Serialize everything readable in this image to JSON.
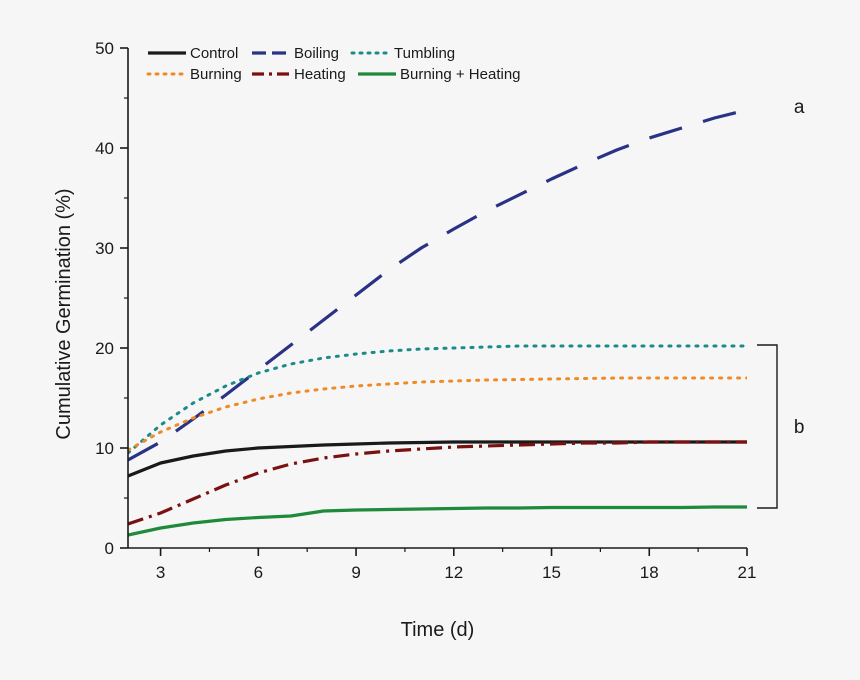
{
  "chart_data": {
    "type": "line",
    "title": "",
    "xlabel": "Time (d)",
    "ylabel": "Cumulative Germination (%)",
    "xlim": [
      2,
      21
    ],
    "ylim": [
      0,
      50
    ],
    "xticks": [
      3,
      6,
      9,
      12,
      15,
      18,
      21
    ],
    "yticks": [
      0,
      10,
      20,
      30,
      40,
      50
    ],
    "legend_position": "top-left",
    "grid": false,
    "series": [
      {
        "name": "Control",
        "color": "#1a1a1a",
        "dash": "solid",
        "x": [
          2,
          3,
          4,
          5,
          6,
          7,
          8,
          9,
          10,
          11,
          12,
          13,
          14,
          15,
          16,
          17,
          18,
          19,
          20,
          21
        ],
        "values": [
          7.2,
          8.5,
          9.2,
          9.7,
          10.0,
          10.15,
          10.3,
          10.4,
          10.5,
          10.55,
          10.6,
          10.6,
          10.6,
          10.6,
          10.6,
          10.6,
          10.6,
          10.6,
          10.6,
          10.6
        ]
      },
      {
        "name": "Boiling",
        "color": "#2a3286",
        "dash": "long-dash",
        "x": [
          2,
          3,
          4,
          5,
          6,
          7,
          8,
          9,
          10,
          11,
          12,
          13,
          14,
          15,
          16,
          17,
          18,
          19,
          20,
          21
        ],
        "values": [
          8.8,
          10.6,
          12.9,
          15.3,
          17.8,
          20.3,
          22.8,
          25.3,
          27.8,
          30.0,
          31.9,
          33.7,
          35.3,
          36.9,
          38.4,
          39.8,
          41.0,
          42.0,
          43.0,
          43.8
        ]
      },
      {
        "name": "Tumbling",
        "color": "#1a8a8a",
        "dash": "dot",
        "x": [
          2,
          3,
          4,
          5,
          6,
          7,
          8,
          9,
          10,
          11,
          12,
          13,
          14,
          15,
          16,
          17,
          18,
          19,
          20,
          21
        ],
        "values": [
          9.5,
          12.3,
          14.5,
          16.2,
          17.5,
          18.4,
          19.0,
          19.4,
          19.7,
          19.9,
          20.0,
          20.1,
          20.2,
          20.2,
          20.2,
          20.2,
          20.2,
          20.2,
          20.2,
          20.2
        ]
      },
      {
        "name": "Burning",
        "color": "#f08a24",
        "dash": "dot",
        "x": [
          2,
          3,
          4,
          5,
          6,
          7,
          8,
          9,
          10,
          11,
          12,
          13,
          14,
          15,
          16,
          17,
          18,
          19,
          20,
          21
        ],
        "values": [
          9.8,
          11.6,
          13.0,
          14.1,
          14.9,
          15.5,
          15.9,
          16.2,
          16.4,
          16.6,
          16.7,
          16.8,
          16.85,
          16.9,
          16.95,
          17.0,
          17.0,
          17.0,
          17.0,
          17.0
        ]
      },
      {
        "name": "Heating",
        "color": "#7a1010",
        "dash": "dash-dot",
        "x": [
          2,
          3,
          4,
          5,
          6,
          7,
          8,
          9,
          10,
          11,
          12,
          13,
          14,
          15,
          16,
          17,
          18,
          19,
          20,
          21
        ],
        "values": [
          2.4,
          3.5,
          4.9,
          6.3,
          7.5,
          8.4,
          9.0,
          9.4,
          9.7,
          9.9,
          10.1,
          10.2,
          10.3,
          10.4,
          10.5,
          10.5,
          10.6,
          10.6,
          10.6,
          10.6
        ]
      },
      {
        "name": "Burning + Heating",
        "color": "#1f8a3c",
        "dash": "solid",
        "x": [
          2,
          3,
          4,
          5,
          6,
          7,
          8,
          9,
          10,
          11,
          12,
          13,
          14,
          15,
          16,
          17,
          18,
          19,
          20,
          21
        ],
        "values": [
          1.3,
          2.0,
          2.5,
          2.85,
          3.05,
          3.2,
          3.7,
          3.8,
          3.85,
          3.9,
          3.95,
          4.0,
          4.0,
          4.05,
          4.05,
          4.05,
          4.05,
          4.05,
          4.1,
          4.1
        ]
      }
    ],
    "annotations": [
      {
        "text": "a",
        "x": 22.6,
        "y": 44.2
      },
      {
        "text": "b",
        "x": 22.6,
        "y": 12.2,
        "bracket_range": [
          4.0,
          20.3
        ]
      }
    ]
  }
}
